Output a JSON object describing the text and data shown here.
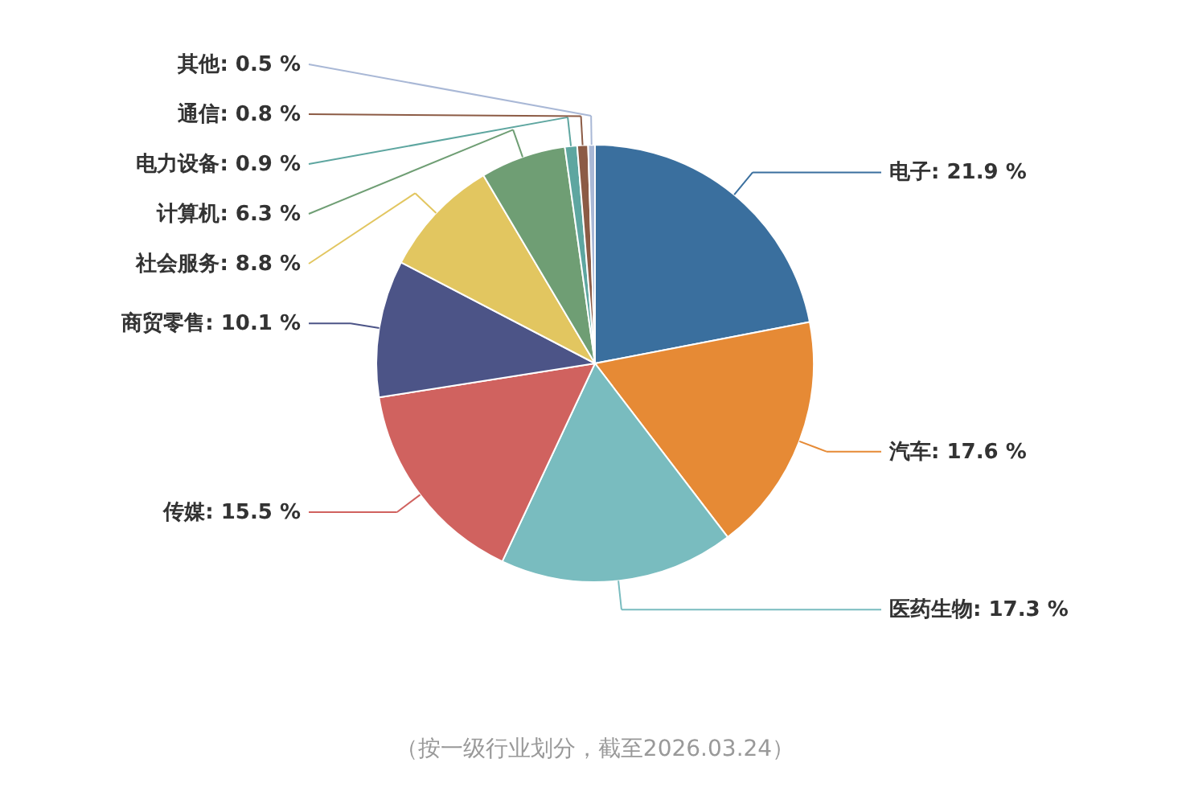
{
  "chart_data": {
    "type": "pie",
    "categories": [
      "电子",
      "汽车",
      "医药生物",
      "传媒",
      "商贸零售",
      "社会服务",
      "计算机",
      "电力设备",
      "通信",
      "其他"
    ],
    "values": [
      21.9,
      17.6,
      17.3,
      15.5,
      10.1,
      8.8,
      6.3,
      0.9,
      0.8,
      0.5
    ],
    "value_labels": [
      "21.9 %",
      "17.6 %",
      "17.3 %",
      "15.5 %",
      "10.1 %",
      "8.8 %",
      "6.3 %",
      "0.9 %",
      "0.8 %",
      "0.5 %"
    ],
    "colors": [
      "#3a6f9e",
      "#e68a35",
      "#79bcbf",
      "#d0625f",
      "#4c5487",
      "#e2c660",
      "#6f9e74",
      "#5ea6a0",
      "#8c5b45",
      "#a9b8d6"
    ],
    "annotations": [
      "（按一级行业划分，截至2026.03.24）"
    ]
  }
}
